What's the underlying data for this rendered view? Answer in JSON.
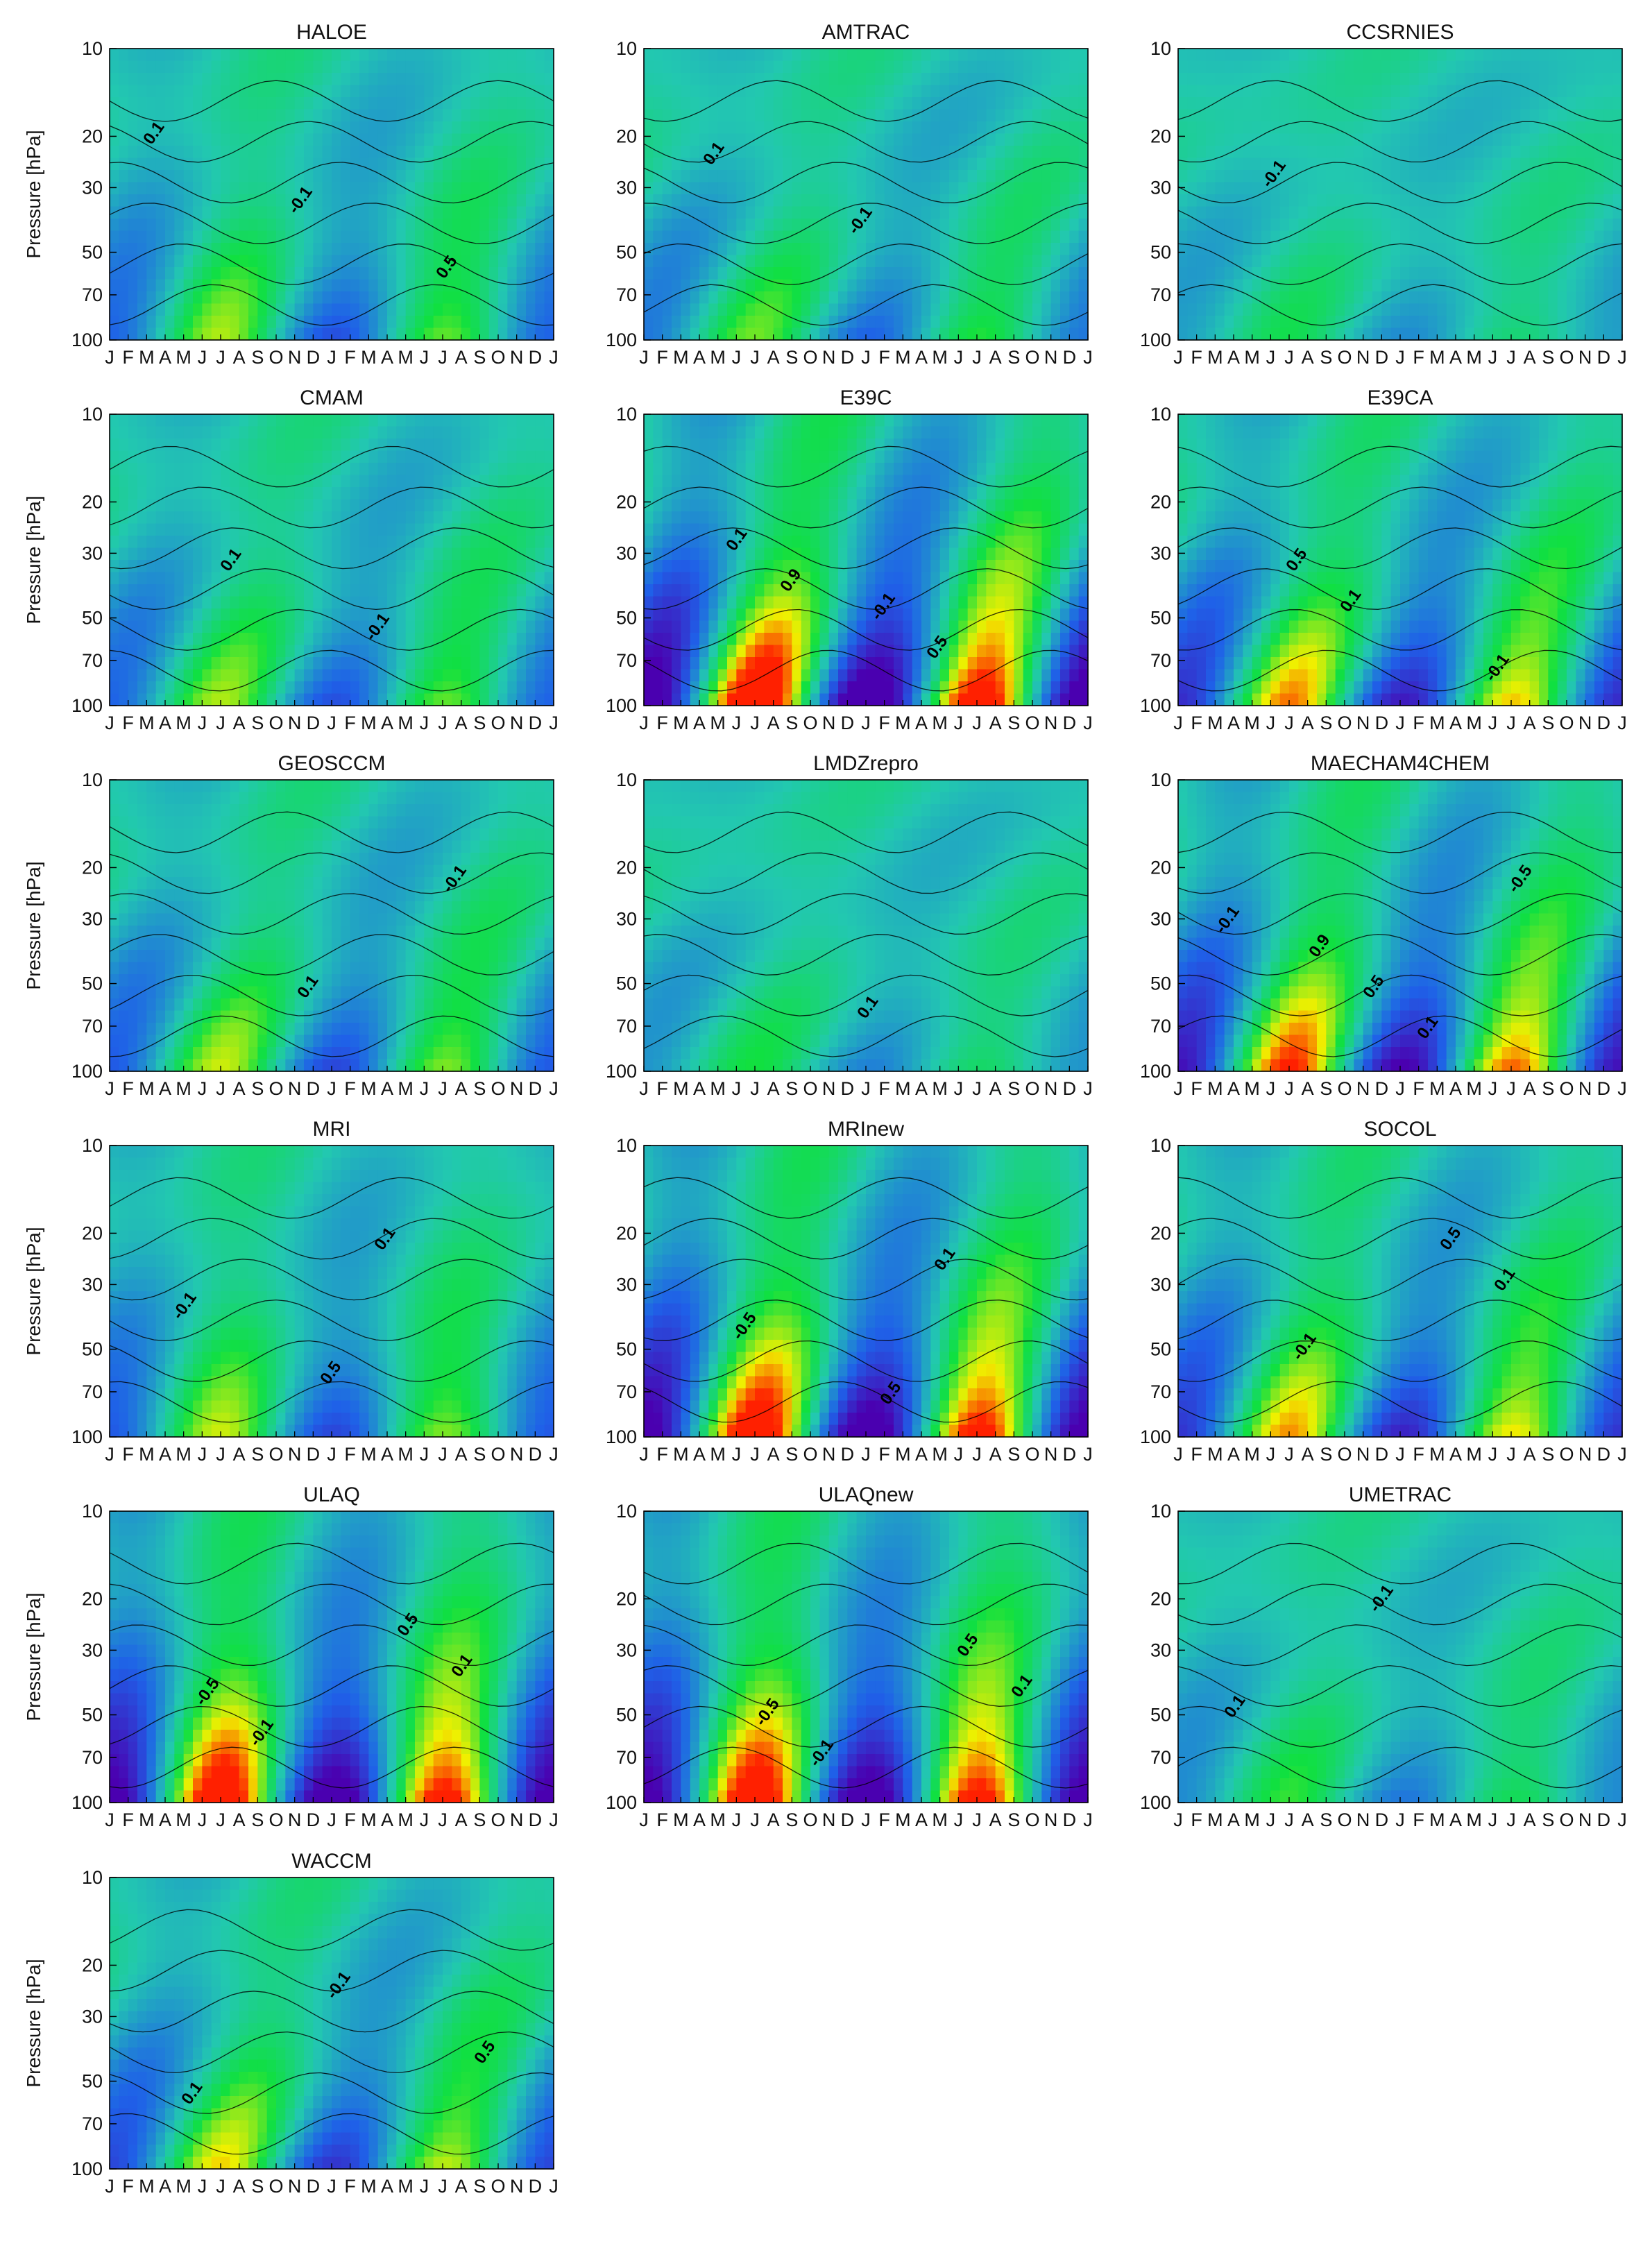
{
  "figure": {
    "ylabel": "Pressure [hPa]",
    "y_ticks": [
      10,
      20,
      30,
      50,
      70,
      100
    ],
    "x_ticks": [
      "J",
      "F",
      "M",
      "A",
      "M",
      "J",
      "J",
      "A",
      "S",
      "O",
      "N",
      "D",
      "J",
      "F",
      "M",
      "A",
      "M",
      "J",
      "J",
      "A",
      "S",
      "O",
      "N",
      "D",
      "J"
    ]
  },
  "colors": {
    "low": "#4a00b0",
    "mid_low": "#1f60e8",
    "neutral": "#22c8b0",
    "mid_high": "#10e040",
    "high": "#f0f000",
    "extreme": "#ff2000"
  },
  "chart_data": [
    {
      "type": "heatmap",
      "title": "HALOE",
      "amplitude": 0.55,
      "lag": 3.5,
      "signal": [
        -0.5,
        0.4
      ],
      "labels": [
        "0.1",
        "-0.1",
        "0.5"
      ]
    },
    {
      "type": "heatmap",
      "title": "AMTRAC",
      "amplitude": 0.45,
      "lag": 6,
      "signal": [
        -0.4,
        0.35
      ],
      "labels": [
        "0.1",
        "-0.1"
      ]
    },
    {
      "type": "heatmap",
      "title": "CCSRNIES",
      "amplitude": 0.25,
      "lag": 5,
      "signal": [
        -0.2,
        0.15
      ],
      "labels": [
        "-0.1"
      ]
    },
    {
      "type": "heatmap",
      "title": "CMAM",
      "amplitude": 0.55,
      "lag": 5,
      "signal": [
        -0.5,
        0.45
      ],
      "labels": [
        "0.1",
        "-0.1"
      ]
    },
    {
      "type": "heatmap",
      "title": "E39C",
      "amplitude": 1.3,
      "lag": 4,
      "signal": [
        -1.2,
        1.1
      ],
      "labels": [
        "0.9",
        "0.5",
        "0.1",
        "-0.1"
      ]
    },
    {
      "type": "heatmap",
      "title": "E39CA",
      "amplitude": 0.85,
      "lag": 5,
      "signal": [
        -0.8,
        0.8
      ],
      "labels": [
        "0.1",
        "-0.1",
        "0.5"
      ]
    },
    {
      "type": "heatmap",
      "title": "GEOSCCM",
      "amplitude": 0.6,
      "lag": 5,
      "signal": [
        -0.5,
        0.45
      ],
      "labels": [
        "0.1",
        "-0.1"
      ]
    },
    {
      "type": "heatmap",
      "title": "LMDZrepro",
      "amplitude": 0.3,
      "lag": 6,
      "signal": [
        -0.25,
        0.2
      ],
      "labels": [
        "0.1"
      ]
    },
    {
      "type": "heatmap",
      "title": "MAECHAM4CHEM",
      "amplitude": 1.0,
      "lag": 4,
      "signal": [
        -0.9,
        0.9
      ],
      "labels": [
        "0.1",
        "-0.1",
        "0.5",
        "-0.5",
        "0.9"
      ]
    },
    {
      "type": "heatmap",
      "title": "MRI",
      "amplitude": 0.6,
      "lag": 2,
      "signal": [
        -0.5,
        0.6
      ],
      "labels": [
        "0.1",
        "-0.1",
        "0.5"
      ]
    },
    {
      "type": "heatmap",
      "title": "MRInew",
      "amplitude": 1.2,
      "lag": 3,
      "signal": [
        -1.0,
        1.1
      ],
      "labels": [
        "0.1",
        "-0.5",
        "0.5"
      ]
    },
    {
      "type": "heatmap",
      "title": "SOCOL",
      "amplitude": 0.8,
      "lag": 4,
      "signal": [
        -0.7,
        0.7
      ],
      "labels": [
        "0.1",
        "-0.1",
        "0.5"
      ]
    },
    {
      "type": "heatmap",
      "title": "ULAQ",
      "amplitude": 1.2,
      "lag": 1.5,
      "signal": [
        -1.0,
        0.9
      ],
      "labels": [
        "0.1",
        "-0.1",
        "0.5",
        "-0.5"
      ]
    },
    {
      "type": "heatmap",
      "title": "ULAQnew",
      "amplitude": 1.2,
      "lag": 1.5,
      "signal": [
        -1.0,
        1.1
      ],
      "labels": [
        "0.1",
        "-0.1",
        "0.5",
        "-0.5"
      ]
    },
    {
      "type": "heatmap",
      "title": "UMETRAC",
      "amplitude": 0.35,
      "lag": 4,
      "signal": [
        -0.3,
        0.25
      ],
      "labels": [
        "0.1",
        "-0.1"
      ]
    },
    {
      "type": "heatmap",
      "title": "WACCM",
      "amplitude": 0.7,
      "lag": 5,
      "signal": [
        -0.6,
        0.6
      ],
      "labels": [
        "0.1",
        "-0.1",
        "0.5"
      ]
    }
  ]
}
